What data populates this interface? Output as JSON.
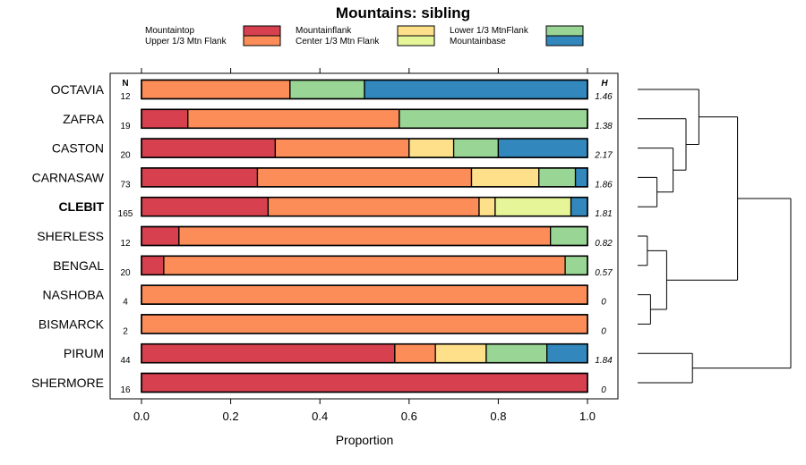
{
  "chart_data": {
    "type": "bar",
    "stacked": true,
    "orientation": "horizontal",
    "title": "Mountains: sibling",
    "xlabel": "Proportion",
    "ylabel": "",
    "xlim": [
      0,
      1
    ],
    "xticks": [
      "0.0",
      "0.2",
      "0.4",
      "0.6",
      "0.8",
      "1.0"
    ],
    "n_header": "N",
    "h_header": "H",
    "legend": [
      {
        "label": "Mountaintop",
        "color": "#d7404e"
      },
      {
        "label": "Upper 1/3 Mtn Flank",
        "color": "#fc8d59"
      },
      {
        "label": "Mountainflank",
        "color": "#fee08b"
      },
      {
        "label": "Center 1/3 Mtn Flank",
        "color": "#e6f598"
      },
      {
        "label": "Lower 1/3 MtnFlank",
        "color": "#99d594"
      },
      {
        "label": "Mountainbase",
        "color": "#3288bd"
      }
    ],
    "categories": [
      "OCTAVIA",
      "ZAFRA",
      "CASTON",
      "CARNASAW",
      "CLEBIT",
      "SHERLESS",
      "BENGAL",
      "NASHOBA",
      "BISMARCK",
      "PIRUM",
      "SHERMORE"
    ],
    "highlight": "CLEBIT",
    "n": [
      "12",
      "19",
      "20",
      "73",
      "165",
      "12",
      "20",
      "4",
      "2",
      "44",
      "16"
    ],
    "h": [
      "1.46",
      "1.38",
      "2.17",
      "1.86",
      "1.81",
      "0.82",
      "0.57",
      "0",
      "0",
      "1.84",
      "0"
    ],
    "series": [
      {
        "name": "Mountaintop",
        "values": [
          0.0,
          0.104,
          0.3,
          0.26,
          0.284,
          0.084,
          0.05,
          0.0,
          0.0,
          0.568,
          1.0
        ]
      },
      {
        "name": "Upper 1/3 Mtn Flank",
        "values": [
          0.333,
          0.474,
          0.3,
          0.48,
          0.473,
          0.833,
          0.9,
          1.0,
          1.0,
          0.091,
          0.0
        ]
      },
      {
        "name": "Mountainflank",
        "values": [
          0.0,
          0.0,
          0.1,
          0.151,
          0.036,
          0.0,
          0.0,
          0.0,
          0.0,
          0.114,
          0.0
        ]
      },
      {
        "name": "Center 1/3 Mtn Flank",
        "values": [
          0.0,
          0.0,
          0.0,
          0.0,
          0.17,
          0.0,
          0.0,
          0.0,
          0.0,
          0.0,
          0.0
        ]
      },
      {
        "name": "Lower 1/3 MtnFlank",
        "values": [
          0.167,
          0.422,
          0.1,
          0.082,
          0.0,
          0.083,
          0.05,
          0.0,
          0.0,
          0.136,
          0.0
        ]
      },
      {
        "name": "Mountainbase",
        "values": [
          0.5,
          0.0,
          0.2,
          0.027,
          0.037,
          0.0,
          0.0,
          0.0,
          0.0,
          0.091,
          0.0
        ]
      }
    ],
    "dendrogram": {
      "note": "hierarchical clustering of categories (order matches categories)",
      "merges": [
        {
          "a": "CARNASAW",
          "b": "CLEBIT",
          "height": 0.12
        },
        {
          "a": "NASHOBA",
          "b": "BISMARCK",
          "height": 0.08
        },
        {
          "a": "SHERLESS",
          "b": "BENGAL",
          "height": 0.06
        },
        {
          "a": "CASTON",
          "b": "[CARNASAW,CLEBIT]",
          "height": 0.22
        },
        {
          "a": "[SHERLESS,BENGAL]",
          "b": "[NASHOBA,BISMARCK]",
          "height": 0.18
        },
        {
          "a": "ZAFRA",
          "b": "[CASTON,...]",
          "height": 0.3
        },
        {
          "a": "OCTAVIA",
          "b": "[ZAFRA,...]",
          "height": 0.38
        },
        {
          "a": "PIRUM",
          "b": "SHERMORE",
          "height": 0.34
        },
        {
          "a": "[OCTAVIA,...]",
          "b": "[SHERLESS,...]",
          "height": 0.62
        },
        {
          "a": "[...]",
          "b": "[PIRUM,SHERMORE]",
          "height": 0.95
        }
      ]
    }
  }
}
